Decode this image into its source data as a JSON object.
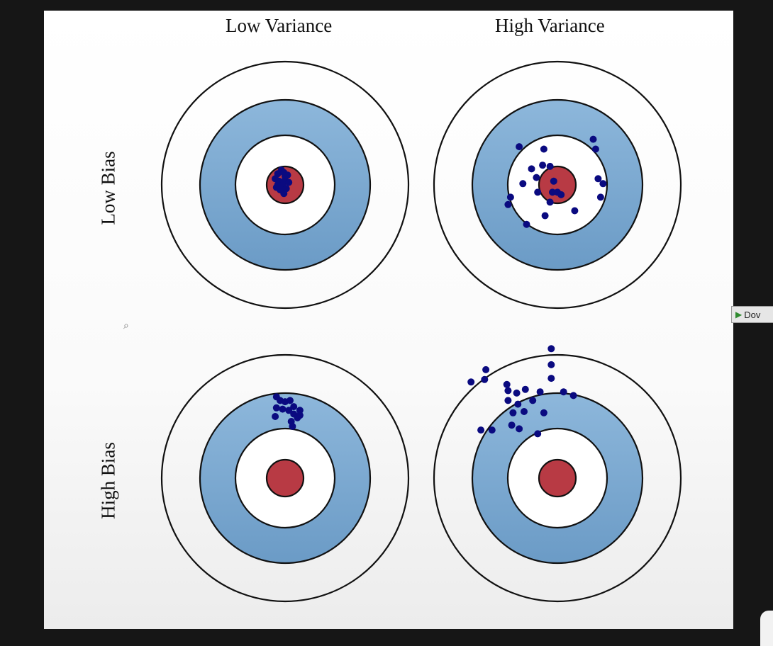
{
  "labels": {
    "columns": [
      "Low Variance",
      "High Variance"
    ],
    "rows": [
      "Low Bias",
      "High Bias"
    ]
  },
  "download_button": {
    "label": "Dov",
    "icon": "play-icon"
  },
  "colors": {
    "bullseye": "#b83a44",
    "blue_ring": "#8db7db",
    "blue_ring_dark": "#6b9bc6",
    "point": "#0a0a80",
    "ring_stroke": "#111111"
  },
  "chart_data": [
    {
      "type": "scatter",
      "title": "Low Bias / Low Variance",
      "xlim": [
        -1,
        1
      ],
      "ylim": [
        -1,
        1
      ],
      "points": [
        [
          -0.06,
          0.09
        ],
        [
          -0.03,
          0.12
        ],
        [
          -0.01,
          0.1
        ],
        [
          0.02,
          0.08
        ],
        [
          -0.08,
          0.05
        ],
        [
          -0.05,
          0.03
        ],
        [
          0.0,
          0.04
        ],
        [
          -0.02,
          0.0
        ],
        [
          0.03,
          0.02
        ],
        [
          -0.07,
          -0.02
        ],
        [
          -0.04,
          -0.04
        ],
        [
          0.01,
          -0.03
        ],
        [
          -0.01,
          -0.07
        ],
        [
          -0.06,
          0.0
        ],
        [
          0.0,
          0.07
        ]
      ]
    },
    {
      "type": "scatter",
      "title": "Low Bias / High Variance",
      "xlim": [
        -1,
        1
      ],
      "ylim": [
        -1,
        1
      ],
      "points": [
        [
          -0.31,
          0.31
        ],
        [
          -0.11,
          0.29
        ],
        [
          0.29,
          0.37
        ],
        [
          0.31,
          0.29
        ],
        [
          -0.12,
          0.16
        ],
        [
          -0.21,
          0.13
        ],
        [
          -0.06,
          0.15
        ],
        [
          -0.03,
          0.03
        ],
        [
          0.33,
          0.05
        ],
        [
          0.37,
          0.01
        ],
        [
          -0.38,
          -0.1
        ],
        [
          -0.4,
          -0.16
        ],
        [
          -0.16,
          -0.06
        ],
        [
          -0.17,
          0.06
        ],
        [
          -0.04,
          -0.06
        ],
        [
          0.0,
          -0.06
        ],
        [
          -0.1,
          -0.25
        ],
        [
          -0.06,
          -0.14
        ],
        [
          0.35,
          -0.1
        ],
        [
          0.14,
          -0.21
        ],
        [
          -0.25,
          -0.32
        ],
        [
          0.03,
          -0.08
        ],
        [
          -0.28,
          0.01
        ]
      ]
    },
    {
      "type": "scatter",
      "title": "High Bias / Low Variance",
      "xlim": [
        -1,
        1
      ],
      "ylim": [
        -1,
        1
      ],
      "points": [
        [
          -0.07,
          0.66
        ],
        [
          -0.04,
          0.63
        ],
        [
          0.0,
          0.62
        ],
        [
          0.04,
          0.63
        ],
        [
          0.07,
          0.58
        ],
        [
          0.12,
          0.55
        ],
        [
          -0.07,
          0.57
        ],
        [
          -0.02,
          0.56
        ],
        [
          0.03,
          0.55
        ],
        [
          0.07,
          0.52
        ],
        [
          0.1,
          0.49
        ],
        [
          -0.08,
          0.5
        ],
        [
          0.05,
          0.46
        ],
        [
          0.12,
          0.51
        ],
        [
          0.06,
          0.42
        ]
      ]
    },
    {
      "type": "scatter",
      "title": "High Bias / High Variance",
      "xlim": [
        -1,
        1
      ],
      "ylim": [
        -1,
        1
      ],
      "points": [
        [
          -0.59,
          0.8
        ],
        [
          -0.58,
          0.88
        ],
        [
          -0.7,
          0.78
        ],
        [
          -0.41,
          0.76
        ],
        [
          -0.33,
          0.69
        ],
        [
          -0.4,
          0.71
        ],
        [
          -0.26,
          0.72
        ],
        [
          -0.4,
          0.63
        ],
        [
          -0.32,
          0.6
        ],
        [
          -0.27,
          0.54
        ],
        [
          -0.36,
          0.53
        ],
        [
          -0.2,
          0.63
        ],
        [
          -0.14,
          0.7
        ],
        [
          -0.11,
          0.53
        ],
        [
          0.05,
          0.7
        ],
        [
          0.13,
          0.67
        ],
        [
          -0.05,
          1.05
        ],
        [
          -0.05,
          0.92
        ],
        [
          -0.05,
          0.81
        ],
        [
          -0.62,
          0.39
        ],
        [
          -0.53,
          0.39
        ],
        [
          -0.37,
          0.43
        ],
        [
          -0.31,
          0.4
        ],
        [
          -0.16,
          0.36
        ]
      ]
    }
  ]
}
